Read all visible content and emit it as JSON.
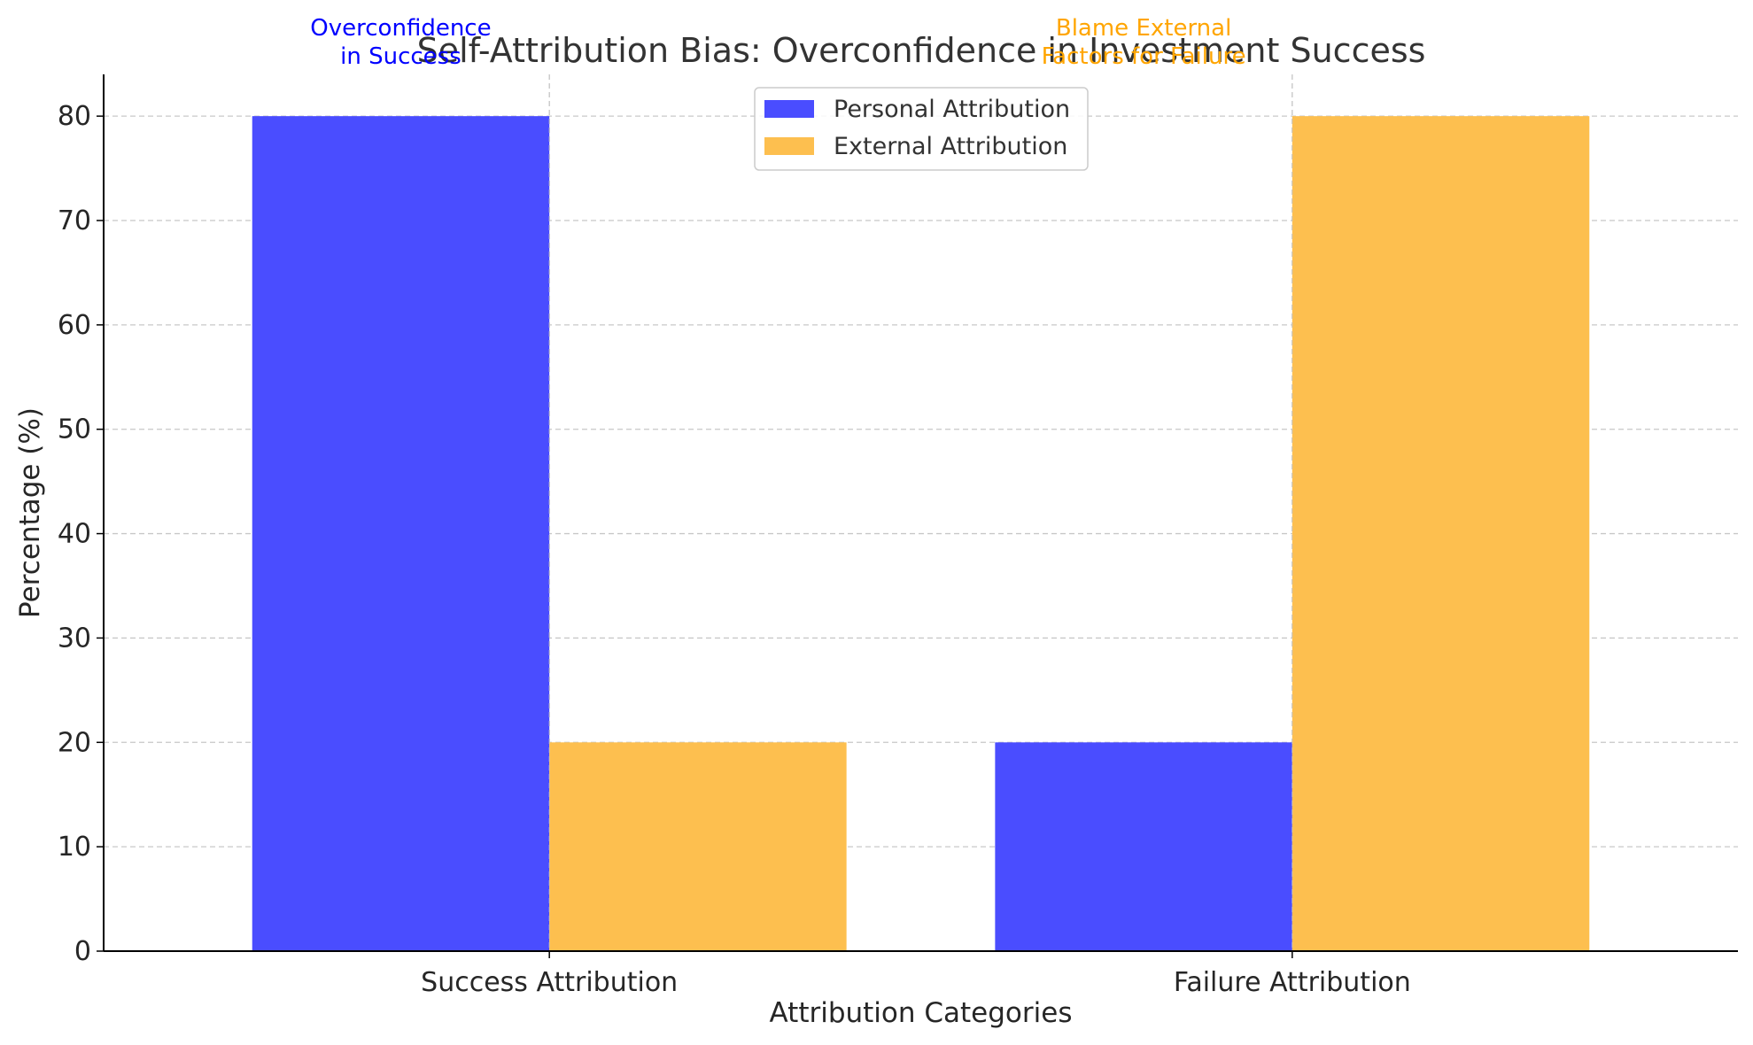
{
  "chart_data": {
    "type": "bar",
    "title": "Self-Attribution Bias: Overconfidence in Investment Success",
    "xlabel": "Attribution Categories",
    "ylabel": "Percentage (%)",
    "categories": [
      "Success Attribution",
      "Failure Attribution"
    ],
    "series": [
      {
        "name": "Personal Attribution",
        "values": [
          80,
          20
        ],
        "color": "#4a4dff"
      },
      {
        "name": "External Attribution",
        "values": [
          20,
          80
        ],
        "color": "#fdbf4f"
      }
    ],
    "ylim": [
      0,
      84
    ],
    "yticks": [
      0,
      10,
      20,
      30,
      40,
      50,
      60,
      70,
      80
    ],
    "grid": true,
    "legend": "top-center",
    "annotations": [
      {
        "lines": [
          "Overconfidence",
          "in Success"
        ],
        "color": "#0000ff",
        "near": "Success Attribution / Personal Attribution"
      },
      {
        "lines": [
          "Blame External",
          "Factors for Failure"
        ],
        "color": "#ffa500",
        "near": "Failure Attribution / Personal Attribution"
      }
    ]
  }
}
